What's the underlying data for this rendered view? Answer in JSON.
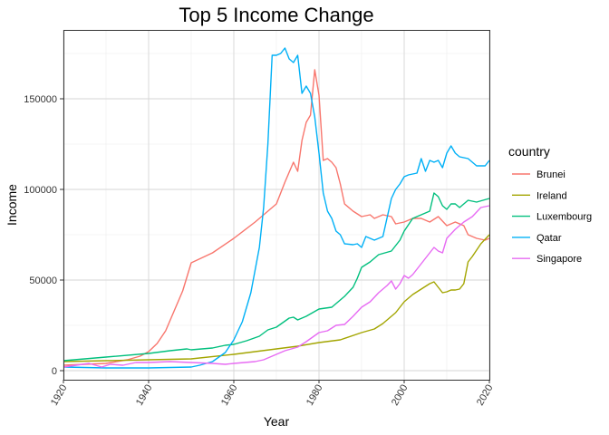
{
  "chart_data": {
    "type": "line",
    "title": "Top 5 Income Change",
    "xlabel": "Year",
    "ylabel": "Income",
    "xlim": [
      1920,
      2020
    ],
    "ylim": [
      -5000,
      188000
    ],
    "x_ticks": [
      "1920",
      "1940",
      "1960",
      "1980",
      "2000",
      "2020"
    ],
    "y_ticks": [
      "0",
      "50000",
      "100000",
      "150000"
    ],
    "grid": true,
    "legend": {
      "title": "country",
      "position": "right"
    },
    "series": [
      {
        "name": "Brunei",
        "color": "#F8766D",
        "points": [
          [
            1920,
            3000
          ],
          [
            1925,
            3500
          ],
          [
            1930,
            4000
          ],
          [
            1935,
            6000
          ],
          [
            1938,
            8000
          ],
          [
            1940,
            10500
          ],
          [
            1942,
            15000
          ],
          [
            1944,
            22000
          ],
          [
            1946,
            33000
          ],
          [
            1948,
            44000
          ],
          [
            1950,
            59500
          ],
          [
            1955,
            65000
          ],
          [
            1960,
            73000
          ],
          [
            1965,
            82000
          ],
          [
            1970,
            92000
          ],
          [
            1972,
            104000
          ],
          [
            1974,
            115000
          ],
          [
            1975,
            110000
          ],
          [
            1976,
            127000
          ],
          [
            1977,
            137000
          ],
          [
            1978,
            141000
          ],
          [
            1979,
            166000
          ],
          [
            1980,
            152000
          ],
          [
            1981,
            116000
          ],
          [
            1982,
            117000
          ],
          [
            1983,
            115000
          ],
          [
            1984,
            112000
          ],
          [
            1985,
            103000
          ],
          [
            1986,
            92000
          ],
          [
            1988,
            88000
          ],
          [
            1990,
            85000
          ],
          [
            1992,
            86000
          ],
          [
            1993,
            84000
          ],
          [
            1995,
            86000
          ],
          [
            1997,
            85000
          ],
          [
            1998,
            81000
          ],
          [
            2000,
            82000
          ],
          [
            2002,
            84000
          ],
          [
            2004,
            84000
          ],
          [
            2006,
            82000
          ],
          [
            2008,
            85000
          ],
          [
            2010,
            80000
          ],
          [
            2012,
            82000
          ],
          [
            2014,
            80000
          ],
          [
            2015,
            75000
          ],
          [
            2017,
            73000
          ],
          [
            2019,
            72000
          ],
          [
            2020,
            73000
          ]
        ]
      },
      {
        "name": "Ireland",
        "color": "#A3A500",
        "points": [
          [
            1920,
            5000
          ],
          [
            1930,
            5500
          ],
          [
            1940,
            6000
          ],
          [
            1950,
            6500
          ],
          [
            1960,
            9000
          ],
          [
            1970,
            12000
          ],
          [
            1975,
            13500
          ],
          [
            1980,
            15500
          ],
          [
            1985,
            17000
          ],
          [
            1990,
            21000
          ],
          [
            1993,
            23000
          ],
          [
            1995,
            26000
          ],
          [
            1998,
            32000
          ],
          [
            2000,
            38000
          ],
          [
            2002,
            42000
          ],
          [
            2004,
            45000
          ],
          [
            2006,
            48000
          ],
          [
            2007,
            49000
          ],
          [
            2008,
            46000
          ],
          [
            2009,
            43000
          ],
          [
            2010,
            43500
          ],
          [
            2011,
            44500
          ],
          [
            2012,
            44500
          ],
          [
            2013,
            45000
          ],
          [
            2014,
            48000
          ],
          [
            2015,
            60000
          ],
          [
            2016,
            63000
          ],
          [
            2018,
            70000
          ],
          [
            2020,
            75000
          ]
        ]
      },
      {
        "name": "Luxembourg",
        "color": "#00BF7D",
        "points": [
          [
            1920,
            5500
          ],
          [
            1930,
            7500
          ],
          [
            1940,
            9500
          ],
          [
            1945,
            11000
          ],
          [
            1949,
            12000
          ],
          [
            1950,
            11500
          ],
          [
            1955,
            12500
          ],
          [
            1958,
            14000
          ],
          [
            1960,
            14500
          ],
          [
            1963,
            16500
          ],
          [
            1966,
            19000
          ],
          [
            1968,
            22500
          ],
          [
            1970,
            24000
          ],
          [
            1973,
            29000
          ],
          [
            1974,
            29500
          ],
          [
            1975,
            28000
          ],
          [
            1977,
            30000
          ],
          [
            1980,
            34000
          ],
          [
            1983,
            35000
          ],
          [
            1986,
            41000
          ],
          [
            1988,
            46000
          ],
          [
            1989,
            51000
          ],
          [
            1990,
            57000
          ],
          [
            1992,
            60000
          ],
          [
            1994,
            64000
          ],
          [
            1997,
            66000
          ],
          [
            1999,
            72000
          ],
          [
            2000,
            77000
          ],
          [
            2002,
            84000
          ],
          [
            2004,
            86000
          ],
          [
            2006,
            88000
          ],
          [
            2007,
            98000
          ],
          [
            2008,
            96000
          ],
          [
            2009,
            91000
          ],
          [
            2010,
            89000
          ],
          [
            2011,
            92000
          ],
          [
            2012,
            92000
          ],
          [
            2013,
            90000
          ],
          [
            2015,
            94000
          ],
          [
            2017,
            93000
          ],
          [
            2020,
            95000
          ]
        ]
      },
      {
        "name": "Qatar",
        "color": "#00B0F6",
        "points": [
          [
            1920,
            2000
          ],
          [
            1930,
            1500
          ],
          [
            1940,
            1500
          ],
          [
            1950,
            2000
          ],
          [
            1952,
            3000
          ],
          [
            1955,
            5000
          ],
          [
            1958,
            10000
          ],
          [
            1960,
            17000
          ],
          [
            1962,
            27000
          ],
          [
            1964,
            43000
          ],
          [
            1966,
            68000
          ],
          [
            1967,
            90000
          ],
          [
            1968,
            125000
          ],
          [
            1969,
            174000
          ],
          [
            1970,
            174000
          ],
          [
            1971,
            175000
          ],
          [
            1972,
            178000
          ],
          [
            1973,
            172000
          ],
          [
            1974,
            170000
          ],
          [
            1975,
            174000
          ],
          [
            1976,
            153000
          ],
          [
            1977,
            157000
          ],
          [
            1978,
            153000
          ],
          [
            1979,
            140000
          ],
          [
            1980,
            120000
          ],
          [
            1981,
            98000
          ],
          [
            1982,
            88000
          ],
          [
            1983,
            84000
          ],
          [
            1984,
            77000
          ],
          [
            1985,
            75000
          ],
          [
            1986,
            70000
          ],
          [
            1988,
            69500
          ],
          [
            1989,
            70000
          ],
          [
            1990,
            68000
          ],
          [
            1991,
            74000
          ],
          [
            1993,
            72000
          ],
          [
            1995,
            74000
          ],
          [
            1997,
            95000
          ],
          [
            1998,
            100000
          ],
          [
            1999,
            103000
          ],
          [
            2000,
            107000
          ],
          [
            2001,
            108000
          ],
          [
            2003,
            109000
          ],
          [
            2004,
            117000
          ],
          [
            2005,
            110000
          ],
          [
            2006,
            116000
          ],
          [
            2007,
            115000
          ],
          [
            2008,
            116000
          ],
          [
            2009,
            112000
          ],
          [
            2010,
            120000
          ],
          [
            2011,
            124000
          ],
          [
            2012,
            120000
          ],
          [
            2013,
            118000
          ],
          [
            2015,
            117000
          ],
          [
            2016,
            115000
          ],
          [
            2017,
            113000
          ],
          [
            2019,
            113000
          ],
          [
            2020,
            116000
          ]
        ]
      },
      {
        "name": "Singapore",
        "color": "#E76BF3",
        "points": [
          [
            1920,
            2000
          ],
          [
            1923,
            3000
          ],
          [
            1926,
            4000
          ],
          [
            1929,
            2000
          ],
          [
            1931,
            3500
          ],
          [
            1934,
            3000
          ],
          [
            1937,
            4500
          ],
          [
            1940,
            4500
          ],
          [
            1945,
            5000
          ],
          [
            1950,
            4500
          ],
          [
            1955,
            4000
          ],
          [
            1958,
            3500
          ],
          [
            1960,
            4000
          ],
          [
            1965,
            5000
          ],
          [
            1967,
            6000
          ],
          [
            1970,
            9000
          ],
          [
            1972,
            11000
          ],
          [
            1975,
            13000
          ],
          [
            1977,
            16000
          ],
          [
            1980,
            21000
          ],
          [
            1982,
            22000
          ],
          [
            1984,
            25000
          ],
          [
            1986,
            25500
          ],
          [
            1988,
            30000
          ],
          [
            1990,
            35000
          ],
          [
            1992,
            38000
          ],
          [
            1994,
            43000
          ],
          [
            1996,
            47000
          ],
          [
            1997,
            49500
          ],
          [
            1998,
            45000
          ],
          [
            1999,
            48000
          ],
          [
            2000,
            52500
          ],
          [
            2001,
            51000
          ],
          [
            2002,
            53000
          ],
          [
            2004,
            59000
          ],
          [
            2006,
            65000
          ],
          [
            2007,
            68000
          ],
          [
            2008,
            66000
          ],
          [
            2009,
            65000
          ],
          [
            2010,
            73000
          ],
          [
            2012,
            78000
          ],
          [
            2014,
            82000
          ],
          [
            2016,
            85000
          ],
          [
            2018,
            90000
          ],
          [
            2020,
            91000
          ]
        ]
      }
    ]
  }
}
